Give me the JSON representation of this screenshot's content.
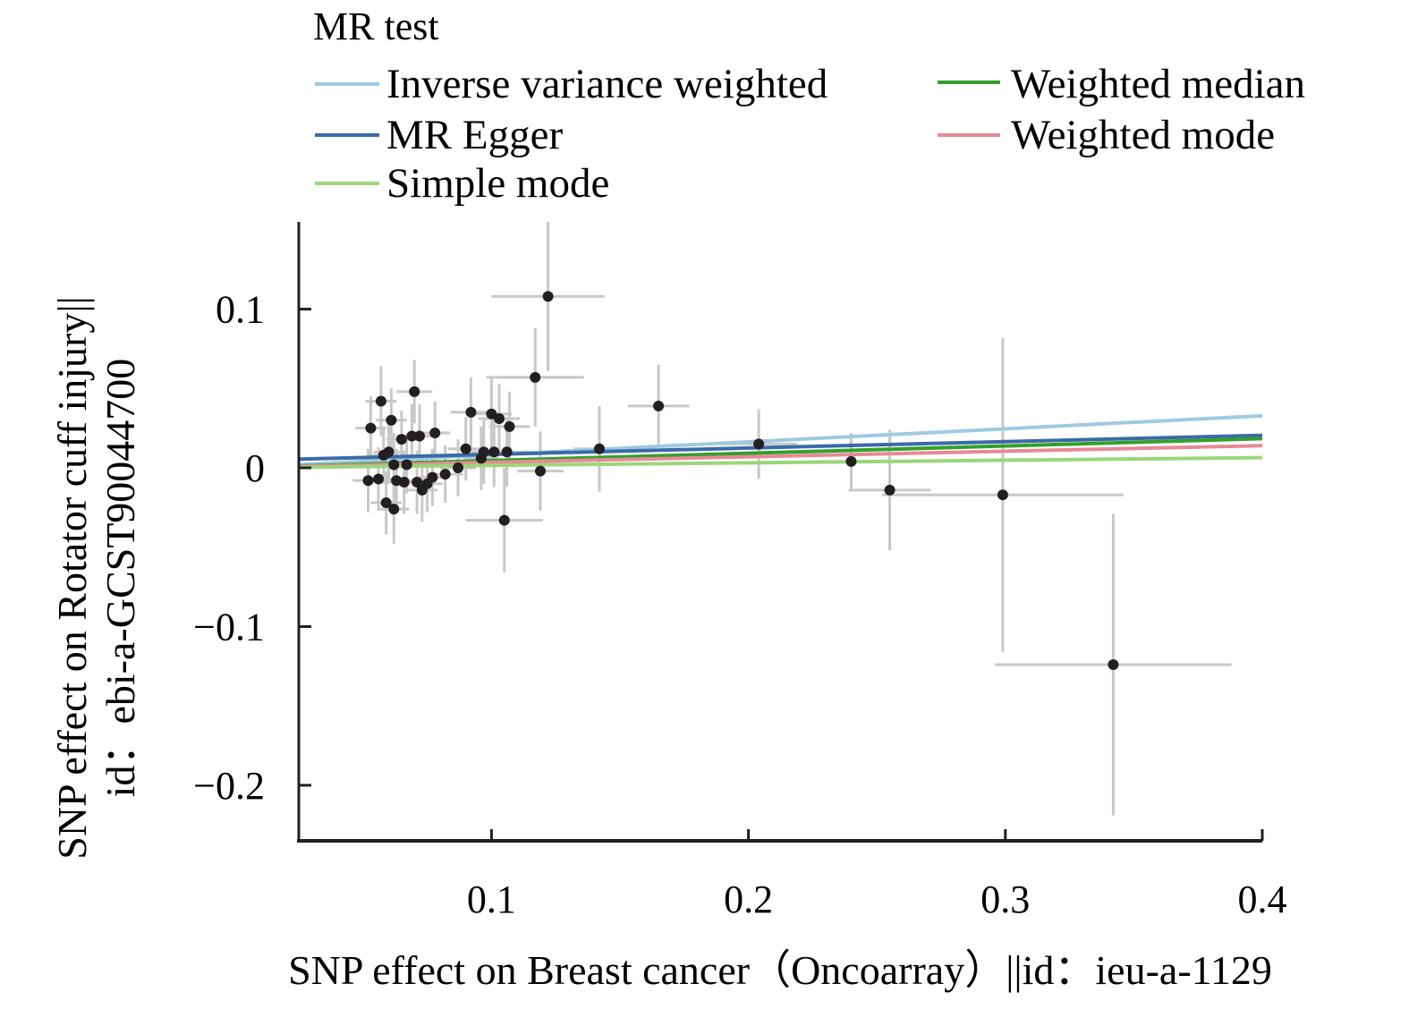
{
  "chart_data": {
    "type": "scatter",
    "title": "",
    "xlabel": "SNP effect on Breast cancer（Oncoarray）||id：ieu-a-1129",
    "ylabel_line1": "SNP effect on Rotator cuff injury||",
    "ylabel_line2": "id：ebi-a-GCST90044700",
    "xlim": [
      0.025,
      0.4
    ],
    "ylim": [
      -0.235,
      0.155
    ],
    "x_ticks": [
      0.1,
      0.2,
      0.3,
      0.4
    ],
    "x_tick_labels": [
      "0.1",
      "0.2",
      "0.3",
      "0.4"
    ],
    "y_ticks": [
      0.1,
      0,
      -0.1,
      -0.2
    ],
    "y_tick_labels": [
      "0.1",
      "0",
      "−0.1",
      "−0.2"
    ],
    "legend": {
      "title": "MR test",
      "placement": "top",
      "entries": [
        {
          "label": "Inverse variance weighted",
          "color": "#9ecae1"
        },
        {
          "label": "Weighted median",
          "color": "#33a02c"
        },
        {
          "label": "MR Egger",
          "color": "#3b6aa8"
        },
        {
          "label": "Weighted mode",
          "color": "#e78a96"
        },
        {
          "label": "Simple mode",
          "color": "#9ad67a"
        }
      ]
    },
    "series_lines": [
      {
        "name": "Inverse variance weighted",
        "color": "#9ecae1",
        "slope": 0.082,
        "intercept": 0
      },
      {
        "name": "MR Egger",
        "color": "#3b6aa8",
        "slope": 0.04,
        "intercept": 0.0045
      },
      {
        "name": "Weighted median",
        "color": "#33a02c",
        "slope": 0.046,
        "intercept": 0
      },
      {
        "name": "Weighted mode",
        "color": "#e78a96",
        "slope": 0.035,
        "intercept": 0
      },
      {
        "name": "Simple mode",
        "color": "#9ad67a",
        "slope": 0.016,
        "intercept": 0
      }
    ],
    "point_color": "#231f20",
    "errorbar_color": "#c8c8c8",
    "points": [
      {
        "x": 0.053,
        "y": 0.025,
        "xe": 0.006,
        "ye": 0.02
      },
      {
        "x": 0.057,
        "y": 0.042,
        "xe": 0.006,
        "ye": 0.022
      },
      {
        "x": 0.061,
        "y": 0.03,
        "xe": 0.006,
        "ye": 0.02
      },
      {
        "x": 0.065,
        "y": 0.018,
        "xe": 0.006,
        "ye": 0.018
      },
      {
        "x": 0.069,
        "y": 0.02,
        "xe": 0.006,
        "ye": 0.02
      },
      {
        "x": 0.07,
        "y": 0.048,
        "xe": 0.007,
        "ye": 0.02
      },
      {
        "x": 0.072,
        "y": 0.02,
        "xe": 0.006,
        "ye": 0.02
      },
      {
        "x": 0.078,
        "y": 0.022,
        "xe": 0.006,
        "ye": 0.02
      },
      {
        "x": 0.058,
        "y": 0.008,
        "xe": 0.006,
        "ye": 0.018
      },
      {
        "x": 0.06,
        "y": 0.01,
        "xe": 0.006,
        "ye": 0.02
      },
      {
        "x": 0.062,
        "y": 0.002,
        "xe": 0.006,
        "ye": 0.02
      },
      {
        "x": 0.067,
        "y": 0.002,
        "xe": 0.006,
        "ye": 0.018
      },
      {
        "x": 0.052,
        "y": -0.008,
        "xe": 0.006,
        "ye": 0.02
      },
      {
        "x": 0.056,
        "y": -0.007,
        "xe": 0.006,
        "ye": 0.02
      },
      {
        "x": 0.059,
        "y": -0.022,
        "xe": 0.006,
        "ye": 0.02
      },
      {
        "x": 0.062,
        "y": -0.026,
        "xe": 0.006,
        "ye": 0.022
      },
      {
        "x": 0.063,
        "y": -0.008,
        "xe": 0.006,
        "ye": 0.02
      },
      {
        "x": 0.066,
        "y": -0.009,
        "xe": 0.006,
        "ye": 0.02
      },
      {
        "x": 0.071,
        "y": -0.009,
        "xe": 0.006,
        "ye": 0.02
      },
      {
        "x": 0.073,
        "y": -0.014,
        "xe": 0.006,
        "ye": 0.02
      },
      {
        "x": 0.075,
        "y": -0.01,
        "xe": 0.006,
        "ye": 0.018
      },
      {
        "x": 0.077,
        "y": -0.006,
        "xe": 0.006,
        "ye": 0.018
      },
      {
        "x": 0.082,
        "y": -0.004,
        "xe": 0.007,
        "ye": 0.018
      },
      {
        "x": 0.087,
        "y": 0.0,
        "xe": 0.007,
        "ye": 0.018
      },
      {
        "x": 0.09,
        "y": 0.012,
        "xe": 0.007,
        "ye": 0.02
      },
      {
        "x": 0.092,
        "y": 0.035,
        "xe": 0.008,
        "ye": 0.022
      },
      {
        "x": 0.096,
        "y": 0.006,
        "xe": 0.007,
        "ye": 0.02
      },
      {
        "x": 0.097,
        "y": 0.01,
        "xe": 0.007,
        "ye": 0.02
      },
      {
        "x": 0.1,
        "y": 0.034,
        "xe": 0.008,
        "ye": 0.022
      },
      {
        "x": 0.101,
        "y": 0.01,
        "xe": 0.008,
        "ye": 0.022
      },
      {
        "x": 0.103,
        "y": 0.031,
        "xe": 0.008,
        "ye": 0.022
      },
      {
        "x": 0.106,
        "y": 0.01,
        "xe": 0.008,
        "ye": 0.022
      },
      {
        "x": 0.107,
        "y": 0.026,
        "xe": 0.008,
        "ye": 0.022
      },
      {
        "x": 0.105,
        "y": -0.033,
        "xe": 0.015,
        "ye": 0.033
      },
      {
        "x": 0.117,
        "y": 0.057,
        "xe": 0.019,
        "ye": 0.031
      },
      {
        "x": 0.119,
        "y": -0.002,
        "xe": 0.009,
        "ye": 0.025
      },
      {
        "x": 0.122,
        "y": 0.108,
        "xe": 0.022,
        "ye": 0.047
      },
      {
        "x": 0.142,
        "y": 0.012,
        "xe": 0.01,
        "ye": 0.027
      },
      {
        "x": 0.165,
        "y": 0.039,
        "xe": 0.012,
        "ye": 0.026
      },
      {
        "x": 0.204,
        "y": 0.015,
        "xe": 0.015,
        "ye": 0.022
      },
      {
        "x": 0.24,
        "y": 0.004,
        "xe": 0.012,
        "ye": 0.018
      },
      {
        "x": 0.255,
        "y": -0.014,
        "xe": 0.016,
        "ye": 0.038
      },
      {
        "x": 0.299,
        "y": -0.017,
        "xe": 0.047,
        "ye": 0.099
      },
      {
        "x": 0.342,
        "y": -0.124,
        "xe": 0.046,
        "ye": 0.095
      }
    ]
  }
}
